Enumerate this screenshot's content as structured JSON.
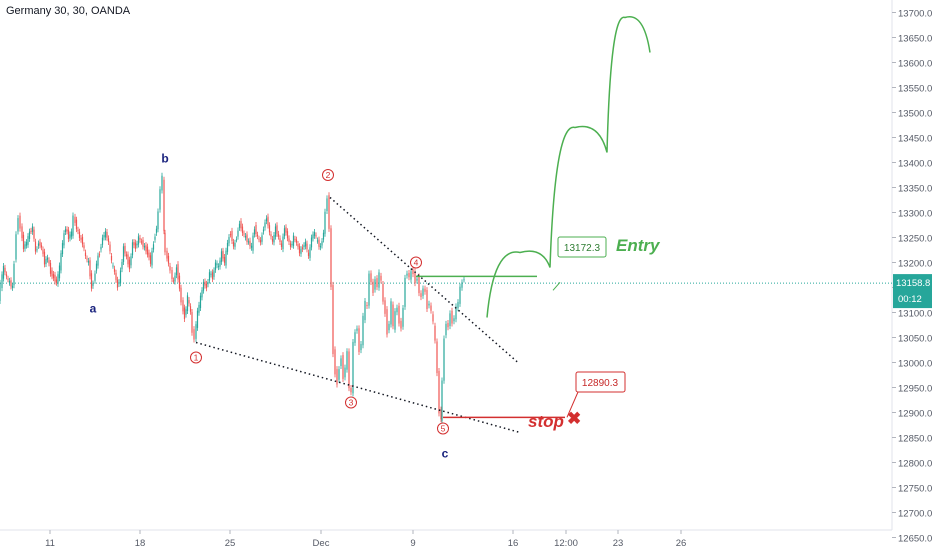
{
  "header": {
    "title": "Germany 30, 30, OANDA"
  },
  "chart_data": {
    "type": "candlestick",
    "title": "Germany 30, 30, OANDA",
    "ylim": [
      12625,
      13725
    ],
    "y_ticks": [
      "13700.0",
      "13650.0",
      "13600.0",
      "13550.0",
      "13500.0",
      "13450.0",
      "13400.0",
      "13350.0",
      "13300.0",
      "13250.0",
      "13200.0",
      "13150.0",
      "13100.0",
      "13050.0",
      "13000.0",
      "12950.0",
      "12900.0",
      "12850.0",
      "12800.0",
      "12750.0",
      "12700.0",
      "12650.0"
    ],
    "x_ticks": [
      "11",
      "18",
      "25",
      "Dec",
      "9",
      "16",
      "12:00",
      "23",
      "26"
    ],
    "current_price": {
      "value": "13158.8",
      "countdown": "00:12"
    },
    "price_path": [
      [
        0,
        13130
      ],
      [
        2,
        13155
      ],
      [
        5,
        13190
      ],
      [
        8,
        13170
      ],
      [
        11,
        13160
      ],
      [
        14,
        13150
      ],
      [
        16,
        13200
      ],
      [
        18,
        13260
      ],
      [
        20,
        13290
      ],
      [
        22,
        13270
      ],
      [
        25,
        13230
      ],
      [
        28,
        13240
      ],
      [
        31,
        13260
      ],
      [
        34,
        13270
      ],
      [
        37,
        13220
      ],
      [
        40,
        13240
      ],
      [
        43,
        13230
      ],
      [
        46,
        13200
      ],
      [
        49,
        13210
      ],
      [
        52,
        13180
      ],
      [
        55,
        13170
      ],
      [
        58,
        13160
      ],
      [
        61,
        13190
      ],
      [
        64,
        13240
      ],
      [
        67,
        13270
      ],
      [
        70,
        13250
      ],
      [
        73,
        13260
      ],
      [
        75,
        13290
      ],
      [
        78,
        13270
      ],
      [
        81,
        13250
      ],
      [
        84,
        13240
      ],
      [
        87,
        13210
      ],
      [
        90,
        13200
      ],
      [
        93,
        13150
      ],
      [
        95,
        13160
      ],
      [
        98,
        13200
      ],
      [
        101,
        13220
      ],
      [
        104,
        13250
      ],
      [
        107,
        13260
      ],
      [
        110,
        13240
      ],
      [
        113,
        13200
      ],
      [
        116,
        13180
      ],
      [
        119,
        13150
      ],
      [
        122,
        13180
      ],
      [
        125,
        13230
      ],
      [
        128,
        13210
      ],
      [
        131,
        13190
      ],
      [
        134,
        13240
      ],
      [
        137,
        13230
      ],
      [
        140,
        13250
      ],
      [
        143,
        13240
      ],
      [
        146,
        13230
      ],
      [
        149,
        13220
      ],
      [
        152,
        13200
      ],
      [
        155,
        13240
      ],
      [
        158,
        13270
      ],
      [
        160,
        13300
      ],
      [
        162,
        13350
      ],
      [
        164,
        13370
      ],
      [
        165,
        13260
      ],
      [
        167,
        13220
      ],
      [
        170,
        13200
      ],
      [
        172,
        13180
      ],
      [
        175,
        13160
      ],
      [
        178,
        13190
      ],
      [
        181,
        13150
      ],
      [
        183,
        13120
      ],
      [
        186,
        13090
      ],
      [
        189,
        13130
      ],
      [
        192,
        13100
      ],
      [
        194,
        13060
      ],
      [
        196,
        13050
      ],
      [
        199,
        13100
      ],
      [
        202,
        13130
      ],
      [
        205,
        13160
      ],
      [
        208,
        13150
      ],
      [
        211,
        13180
      ],
      [
        214,
        13170
      ],
      [
        217,
        13200
      ],
      [
        220,
        13190
      ],
      [
        223,
        13220
      ],
      [
        226,
        13200
      ],
      [
        229,
        13240
      ],
      [
        232,
        13260
      ],
      [
        235,
        13230
      ],
      [
        238,
        13250
      ],
      [
        241,
        13280
      ],
      [
        244,
        13260
      ],
      [
        247,
        13250
      ],
      [
        250,
        13240
      ],
      [
        253,
        13230
      ],
      [
        256,
        13270
      ],
      [
        259,
        13250
      ],
      [
        262,
        13240
      ],
      [
        265,
        13270
      ],
      [
        268,
        13290
      ],
      [
        271,
        13260
      ],
      [
        274,
        13240
      ],
      [
        277,
        13270
      ],
      [
        280,
        13250
      ],
      [
        283,
        13230
      ],
      [
        286,
        13270
      ],
      [
        289,
        13250
      ],
      [
        292,
        13230
      ],
      [
        295,
        13250
      ],
      [
        298,
        13240
      ],
      [
        301,
        13220
      ],
      [
        304,
        13230
      ],
      [
        307,
        13240
      ],
      [
        310,
        13210
      ],
      [
        313,
        13250
      ],
      [
        316,
        13260
      ],
      [
        319,
        13240
      ],
      [
        322,
        13230
      ],
      [
        325,
        13260
      ],
      [
        327,
        13300
      ],
      [
        329,
        13330
      ],
      [
        331,
        13270
      ],
      [
        333,
        13150
      ],
      [
        335,
        13020
      ],
      [
        337,
        12980
      ],
      [
        339,
        12960
      ],
      [
        341,
        12990
      ],
      [
        343,
        13010
      ],
      [
        345,
        12970
      ],
      [
        347,
        12990
      ],
      [
        349,
        13020
      ],
      [
        351,
        12950
      ],
      [
        353,
        12940
      ],
      [
        355,
        13040
      ],
      [
        357,
        13060
      ],
      [
        359,
        13070
      ],
      [
        361,
        13020
      ],
      [
        363,
        13040
      ],
      [
        365,
        13090
      ],
      [
        367,
        13120
      ],
      [
        369,
        13110
      ],
      [
        371,
        13180
      ],
      [
        373,
        13160
      ],
      [
        375,
        13140
      ],
      [
        377,
        13170
      ],
      [
        379,
        13150
      ],
      [
        381,
        13180
      ],
      [
        383,
        13160
      ],
      [
        385,
        13120
      ],
      [
        387,
        13100
      ],
      [
        389,
        13060
      ],
      [
        391,
        13080
      ],
      [
        393,
        13120
      ],
      [
        395,
        13070
      ],
      [
        397,
        13100
      ],
      [
        399,
        13110
      ],
      [
        401,
        13080
      ],
      [
        403,
        13070
      ],
      [
        405,
        13110
      ],
      [
        407,
        13170
      ],
      [
        409,
        13180
      ],
      [
        411,
        13170
      ],
      [
        413,
        13180
      ],
      [
        415,
        13180
      ],
      [
        417,
        13160
      ],
      [
        419,
        13170
      ],
      [
        421,
        13140
      ],
      [
        423,
        13130
      ],
      [
        425,
        13150
      ],
      [
        427,
        13140
      ],
      [
        429,
        13110
      ],
      [
        431,
        13120
      ],
      [
        433,
        13100
      ],
      [
        435,
        13080
      ],
      [
        437,
        13040
      ],
      [
        439,
        12980
      ],
      [
        441,
        12900
      ],
      [
        442,
        12890
      ],
      [
        444,
        12960
      ],
      [
        446,
        13050
      ],
      [
        448,
        13080
      ],
      [
        450,
        13070
      ],
      [
        452,
        13100
      ],
      [
        454,
        13080
      ],
      [
        456,
        13090
      ],
      [
        458,
        13110
      ],
      [
        460,
        13120
      ],
      [
        462,
        13150
      ],
      [
        464,
        13160
      ],
      [
        466,
        13170
      ]
    ],
    "projection_path": [
      [
        487,
        13090
      ],
      [
        520,
        13220
      ],
      [
        550,
        13190
      ],
      [
        575,
        13470
      ],
      [
        607,
        13420
      ],
      [
        625,
        13690
      ],
      [
        650,
        13620
      ]
    ],
    "entry": {
      "value": "13172.3",
      "label": "Entry"
    },
    "stop": {
      "value": "12890.3",
      "label": "stop"
    },
    "wave_labels": {
      "a": {
        "text": "a",
        "x": 93,
        "y": 13100
      },
      "b": {
        "text": "b",
        "x": 165,
        "y": 13400
      },
      "c": {
        "text": "c",
        "x": 445,
        "y": 12810
      }
    },
    "wave_points": [
      {
        "text": "1",
        "x": 196,
        "y": 13010
      },
      {
        "text": "2",
        "x": 328,
        "y": 13375
      },
      {
        "text": "3",
        "x": 351,
        "y": 12920
      },
      {
        "text": "4",
        "x": 416,
        "y": 13200
      },
      {
        "text": "5",
        "x": 443,
        "y": 12868
      }
    ],
    "trendlines": [
      {
        "from": [
          196,
          13040
        ],
        "to": [
          520,
          12860
        ]
      },
      {
        "from": [
          330,
          13330
        ],
        "to": [
          518,
          13000
        ]
      }
    ],
    "colors": {
      "up": "#26a69a",
      "down": "#ef5350",
      "projection": "#4caf50",
      "entry": "#4caf50",
      "stop": "#d32f2f",
      "wave": "#d32f2f",
      "abc": "#1a237e",
      "current": "#26a69a"
    }
  }
}
